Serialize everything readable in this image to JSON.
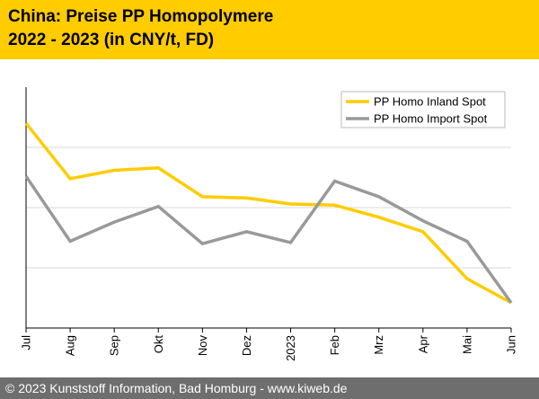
{
  "header": {
    "title_line1": "China: Preise PP Homopolymere",
    "title_line2": "2022 - 2023 (in CNY/t, FD)"
  },
  "footer": {
    "copyright": "© 2023 Kunststoff Information, Bad Homburg - www.kiweb.de"
  },
  "colors": {
    "header_bg": "#ffcc00",
    "inland": "#ffcc00",
    "import": "#999999",
    "footer_bg": "#6e6e6e"
  },
  "chart_data": {
    "type": "line",
    "title": "China: Preise PP Homopolymere 2022 - 2023 (in CNY/t, FD)",
    "xlabel": "",
    "ylabel": "",
    "categories": [
      "Jul",
      "Aug",
      "Sep",
      "Okt",
      "Nov",
      "Dez",
      "2023",
      "Feb",
      "Mrz",
      "Apr",
      "Mai",
      "Jun"
    ],
    "ylim": [
      0,
      100
    ],
    "grid": true,
    "legend": "top-right",
    "series": [
      {
        "name": "PP Homo Inland Spot",
        "color": "#ffcc00",
        "values": [
          85,
          62,
          65.5,
          66.5,
          54.5,
          54,
          51.5,
          51,
          46,
          40,
          20.5,
          10.5
        ]
      },
      {
        "name": "PP Homo Import Spot",
        "color": "#999999",
        "values": [
          63,
          36,
          44,
          50.5,
          35,
          40,
          35.5,
          61,
          54.5,
          44.5,
          36,
          10.5
        ]
      }
    ]
  }
}
